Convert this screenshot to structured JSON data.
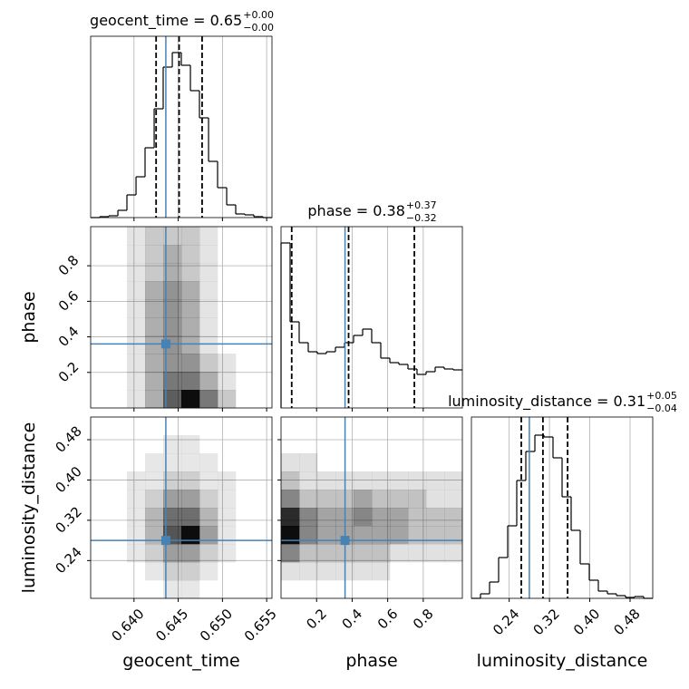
{
  "chart_data": {
    "type": "corner",
    "truth_color": "#4682b4",
    "grid": true,
    "parameters": [
      {
        "name": "geocent_time",
        "title": "geocent_time = 0.65",
        "title_upper": "+0.00",
        "title_lower": "−0.00",
        "xlim": [
          0.6351,
          0.6556
        ],
        "ticks": [
          {
            "value": 0.64,
            "label": "0.640"
          },
          0.645,
          {
            "value": 0.65,
            "label": "0.650"
          },
          0.655
        ],
        "truth": 0.6436,
        "quantiles": [
          0.6425,
          0.6451,
          0.6477
        ],
        "bins": [
          0.6351,
          0.63613,
          0.63715,
          0.63818,
          0.6392,
          0.64023,
          0.64125,
          0.64228,
          0.6433,
          0.64433,
          0.64535,
          0.64638,
          0.6474,
          0.64843,
          0.64945,
          0.65048,
          0.6515,
          0.65253,
          0.65355,
          0.65458,
          0.6556
        ],
        "counts": [
          0,
          1,
          2,
          8,
          25,
          45,
          77,
          120,
          166,
          182,
          168,
          140,
          110,
          62,
          33,
          14,
          4,
          3,
          1,
          0
        ],
        "count_lim": [
          0,
          200
        ],
        "joint": []
      },
      {
        "name": "phase",
        "title": "phase = 0.38",
        "title_upper": "+0.37",
        "title_lower": "−0.32",
        "xlim": [
          0.0,
          1.02
        ],
        "ticks": [
          0.2,
          0.4,
          0.6,
          0.8
        ],
        "truth": 0.36,
        "quantiles": [
          0.06,
          0.38,
          0.75
        ],
        "bins": [
          0,
          0.051,
          0.102,
          0.153,
          0.204,
          0.255,
          0.306,
          0.357,
          0.408,
          0.459,
          0.51,
          0.561,
          0.612,
          0.663,
          0.714,
          0.765,
          0.816,
          0.867,
          0.918,
          0.969,
          1.02
        ],
        "counts": [
          182,
          95,
          72,
          62,
          60,
          62,
          67,
          72,
          80,
          87,
          72,
          55,
          50,
          48,
          43,
          37,
          40,
          45,
          43,
          42
        ],
        "count_lim": [
          0,
          200
        ],
        "joint": [
          [
            [
              0,
              0,
              1,
              2,
              2,
              2,
              1,
              0,
              0,
              0
            ],
            [
              0,
              0,
              1,
              2,
              3,
              2,
              1,
              0,
              0,
              0
            ],
            [
              0,
              0,
              1,
              2,
              3,
              2,
              1,
              0,
              0,
              0
            ],
            [
              0,
              0,
              1,
              3,
              4,
              3,
              1,
              0,
              0,
              0
            ],
            [
              0,
              0,
              1,
              3,
              4,
              3,
              1,
              0,
              0,
              0
            ],
            [
              0,
              0,
              1,
              3,
              4,
              3,
              1,
              0,
              0,
              0
            ],
            [
              0,
              0,
              1,
              3,
              4,
              3,
              1,
              0,
              0,
              0
            ],
            [
              0,
              0,
              1,
              3,
              4,
              4,
              2,
              1,
              0,
              0
            ],
            [
              0,
              0,
              1,
              3,
              5,
              5,
              3,
              1,
              0,
              0
            ],
            [
              0,
              0,
              1,
              3,
              6,
              9,
              5,
              2,
              0,
              0
            ]
          ]
        ]
      },
      {
        "name": "luminosity_distance",
        "title": "luminosity_distance = 0.31",
        "title_upper": "+0.05",
        "title_lower": "−0.04",
        "xlim": [
          0.165,
          0.525
        ],
        "ticks": [
          0.24,
          0.32,
          {
            "value": 0.4,
            "label": "0.40"
          },
          0.48
        ],
        "truth": 0.28,
        "quantiles": [
          0.264,
          0.307,
          0.356
        ],
        "bins": [
          0.165,
          0.183,
          0.201,
          0.219,
          0.237,
          0.255,
          0.273,
          0.291,
          0.309,
          0.327,
          0.345,
          0.363,
          0.381,
          0.399,
          0.417,
          0.435,
          0.453,
          0.471,
          0.489,
          0.507,
          0.525
        ],
        "counts": [
          0,
          5,
          18,
          45,
          80,
          130,
          162,
          180,
          178,
          155,
          112,
          75,
          38,
          20,
          8,
          5,
          3,
          1,
          2,
          0
        ],
        "count_lim": [
          0,
          200
        ],
        "joint": [
          [
            [
              0,
              0,
              0,
              0,
              0,
              0,
              0,
              0,
              0,
              0
            ],
            [
              0,
              0,
              0,
              0,
              1,
              1,
              0,
              0,
              0,
              0
            ],
            [
              0,
              0,
              0,
              1,
              1,
              1,
              1,
              0,
              0,
              0
            ],
            [
              0,
              0,
              1,
              1,
              2,
              2,
              1,
              1,
              0,
              0
            ],
            [
              0,
              0,
              1,
              2,
              4,
              4,
              2,
              1,
              0,
              0
            ],
            [
              0,
              0,
              1,
              3,
              6,
              6,
              3,
              1,
              0,
              0
            ],
            [
              0,
              0,
              1,
              3,
              7,
              10,
              4,
              1,
              0,
              0
            ],
            [
              0,
              0,
              1,
              2,
              4,
              4,
              2,
              1,
              0,
              0
            ],
            [
              0,
              0,
              0,
              1,
              2,
              2,
              1,
              0,
              0,
              0
            ],
            [
              0,
              0,
              0,
              0,
              1,
              1,
              0,
              0,
              0,
              0
            ]
          ],
          [
            [
              0,
              0,
              0,
              0,
              0,
              0,
              0,
              0,
              0,
              0
            ],
            [
              0,
              0,
              0,
              0,
              0,
              0,
              0,
              0,
              0,
              0
            ],
            [
              1,
              1,
              0,
              0,
              0,
              0,
              0,
              0,
              0,
              0
            ],
            [
              2,
              1,
              1,
              1,
              1,
              1,
              1,
              1,
              1,
              1
            ],
            [
              4,
              2,
              2,
              2,
              3,
              2,
              2,
              2,
              1,
              1
            ],
            [
              7,
              4,
              3,
              3,
              4,
              3,
              3,
              2,
              2,
              2
            ],
            [
              8,
              4,
              3,
              3,
              3,
              3,
              3,
              2,
              2,
              2
            ],
            [
              4,
              2,
              2,
              2,
              2,
              2,
              1,
              1,
              1,
              1
            ],
            [
              1,
              1,
              1,
              1,
              1,
              1,
              0,
              0,
              0,
              0
            ],
            [
              0,
              0,
              0,
              0,
              0,
              0,
              0,
              0,
              0,
              0
            ]
          ]
        ]
      }
    ]
  }
}
